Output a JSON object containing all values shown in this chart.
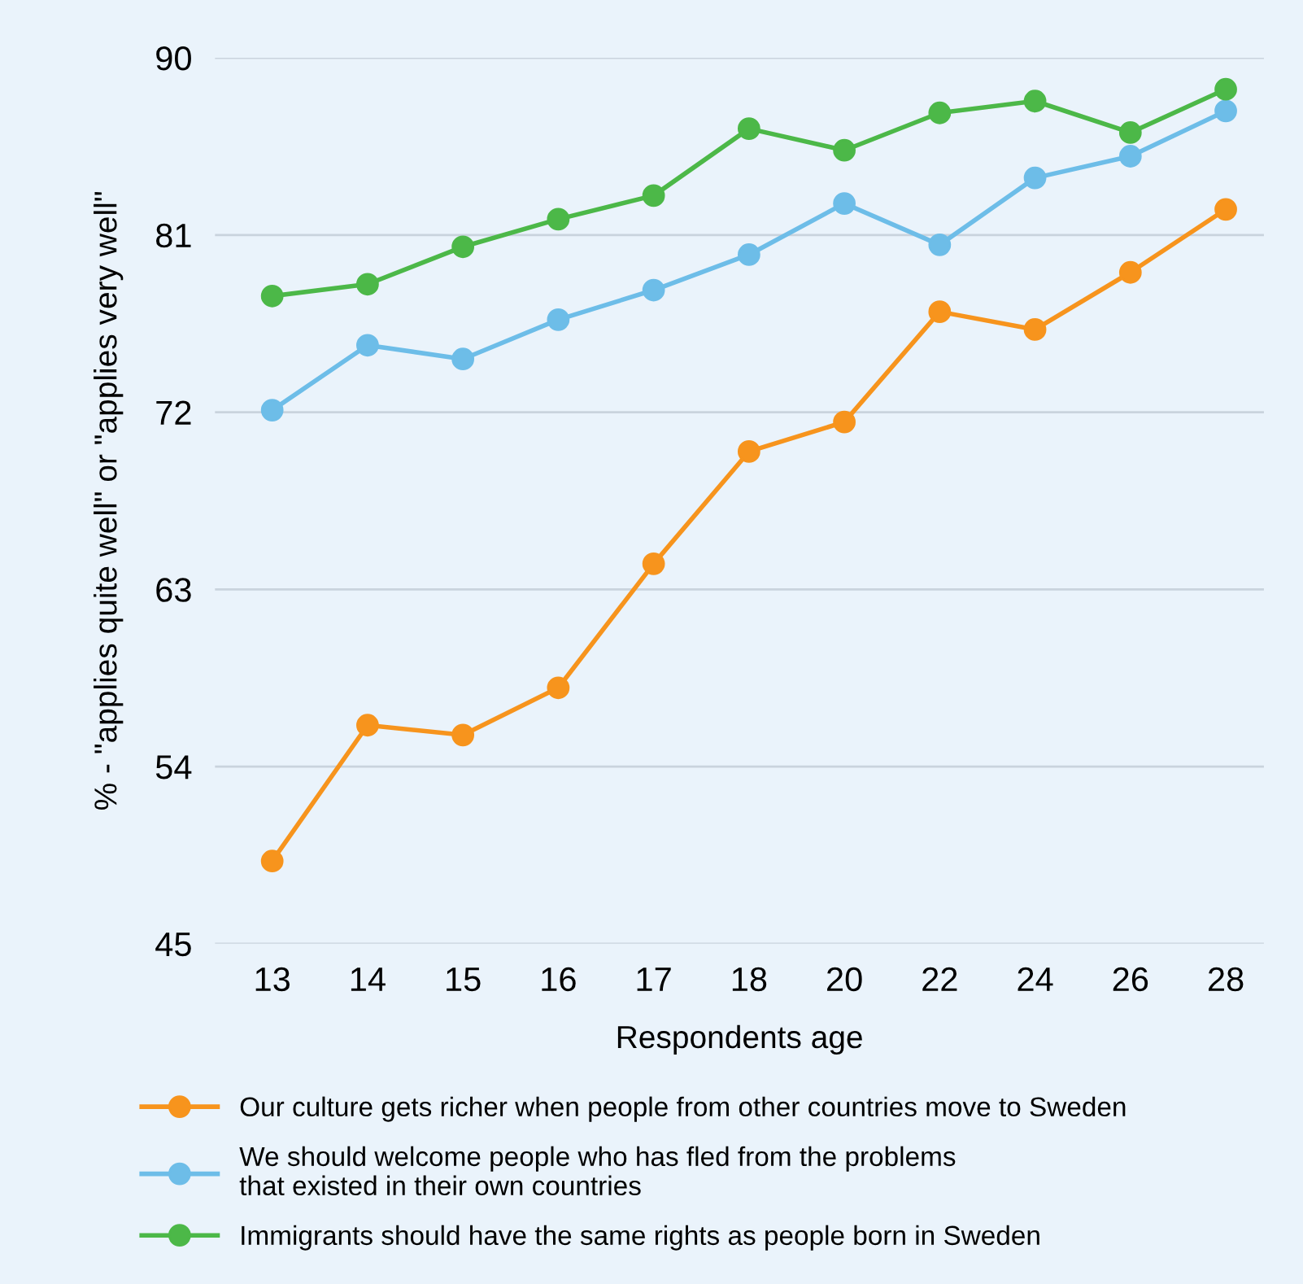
{
  "chart_data": {
    "type": "line",
    "xlabel": "Respondents age",
    "ylabel": "% - \"applies quite well\" or \"applies very well\"",
    "categories": [
      "13",
      "14",
      "15",
      "16",
      "17",
      "18",
      "20",
      "22",
      "24",
      "26",
      "28"
    ],
    "ylim": [
      45,
      90
    ],
    "yticks": [
      45,
      54,
      63,
      72,
      81,
      90
    ],
    "grid": "y",
    "legend": "bottom",
    "marker": "circle",
    "line_style": "solid",
    "series": [
      {
        "name": "Our culture gets richer when people from other countries move to Sweden",
        "color": "#f7941d",
        "values": [
          49.2,
          56.1,
          55.6,
          58.0,
          64.3,
          70.0,
          71.5,
          77.1,
          76.2,
          79.1,
          82.3
        ]
      },
      {
        "name": "We should welcome people who has fled from the problems\nthat existed in their own countries",
        "color": "#6dbde8",
        "values": [
          72.1,
          75.4,
          74.7,
          76.7,
          78.2,
          80.0,
          82.6,
          80.5,
          83.9,
          85.0,
          87.3
        ]
      },
      {
        "name": "Immigrants should have the same rights as people born in Sweden",
        "color": "#4cb848",
        "values": [
          77.9,
          78.5,
          80.4,
          81.8,
          83.0,
          86.4,
          85.3,
          87.2,
          87.8,
          86.2,
          88.4
        ]
      }
    ]
  }
}
